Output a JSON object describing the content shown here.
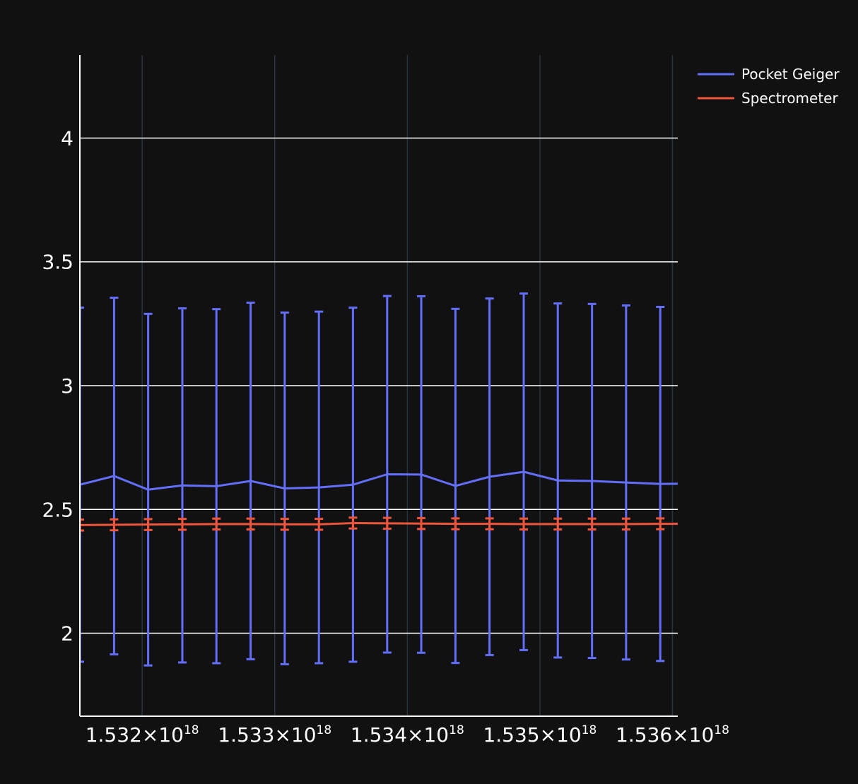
{
  "chart_data": {
    "type": "line",
    "title": "",
    "xlabel": "",
    "ylabel": "",
    "xlim": [
      1.53153e+18,
      1.53604e+18
    ],
    "ylim": [
      1.665,
      4.335
    ],
    "x_ticks": [
      1.532e+18,
      1.533e+18,
      1.534e+18,
      1.535e+18,
      1.536e+18
    ],
    "x_tick_labels": [
      {
        "mantissa": "1.532×10",
        "exp": "18"
      },
      {
        "mantissa": "1.533×10",
        "exp": "18"
      },
      {
        "mantissa": "1.534×10",
        "exp": "18"
      },
      {
        "mantissa": "1.535×10",
        "exp": "18"
      },
      {
        "mantissa": "1.536×10",
        "exp": "18"
      }
    ],
    "y_ticks": [
      2,
      2.5,
      3,
      3.5,
      4
    ],
    "y_tick_labels": [
      "2",
      "2.5",
      "3",
      "3.5",
      "4"
    ],
    "grid": true,
    "legend_position": "top-right",
    "series": [
      {
        "name": "Pocket Geiger",
        "color": "#636efa",
        "error_bars": true,
        "x": [
          1.53153e+18,
          1.531788e+18,
          1.532045e+18,
          1.532303e+18,
          1.53256e+18,
          1.532818e+18,
          1.533075e+18,
          1.533333e+18,
          1.53359e+18,
          1.533848e+18,
          1.534105e+18,
          1.534363e+18,
          1.53462e+18,
          1.534878e+18,
          1.535135e+18,
          1.535393e+18,
          1.53565e+18,
          1.535908e+18,
          1.536165e+18
        ],
        "y": [
          2.6,
          2.635,
          2.58,
          2.597,
          2.594,
          2.615,
          2.585,
          2.589,
          2.6,
          2.642,
          2.641,
          2.595,
          2.632,
          2.652,
          2.617,
          2.615,
          2.609,
          2.603,
          2.605
        ],
        "error": [
          0.715,
          0.72,
          0.71,
          0.715,
          0.715,
          0.72,
          0.71,
          0.71,
          0.715,
          0.72,
          0.72,
          0.715,
          0.72,
          0.72,
          0.715,
          0.715,
          0.715,
          0.715,
          0.715
        ]
      },
      {
        "name": "Spectrometer",
        "color": "#ef553b",
        "error_bars": true,
        "x": [
          1.53153e+18,
          1.531788e+18,
          1.532045e+18,
          1.532303e+18,
          1.53256e+18,
          1.532818e+18,
          1.533075e+18,
          1.533333e+18,
          1.53359e+18,
          1.533848e+18,
          1.534105e+18,
          1.534363e+18,
          1.53462e+18,
          1.534878e+18,
          1.535135e+18,
          1.535393e+18,
          1.53565e+18,
          1.535908e+18,
          1.536165e+18
        ],
        "y": [
          2.437,
          2.438,
          2.439,
          2.44,
          2.441,
          2.441,
          2.44,
          2.44,
          2.445,
          2.444,
          2.443,
          2.442,
          2.442,
          2.441,
          2.441,
          2.441,
          2.441,
          2.442,
          2.442
        ],
        "error": [
          0.022,
          0.022,
          0.022,
          0.022,
          0.022,
          0.022,
          0.022,
          0.022,
          0.022,
          0.022,
          0.022,
          0.022,
          0.022,
          0.022,
          0.022,
          0.022,
          0.022,
          0.022,
          0.022
        ]
      }
    ]
  }
}
